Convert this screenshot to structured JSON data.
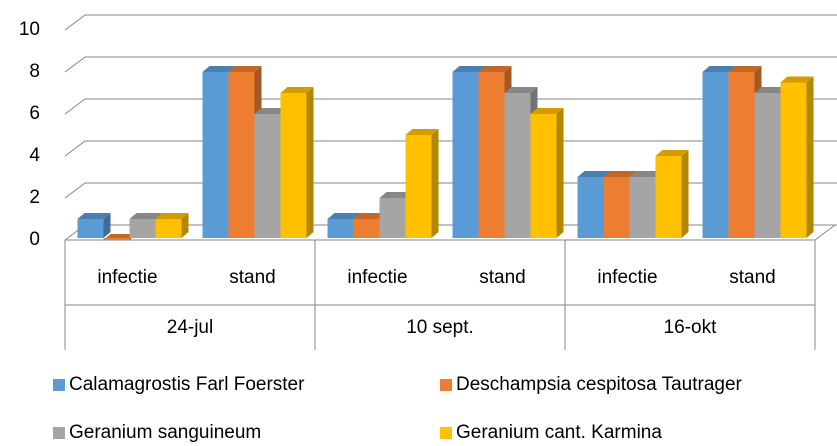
{
  "chart_data": {
    "type": "bar3d",
    "categories": [
      "infectie",
      "stand",
      "infectie",
      "stand",
      "infectie",
      "stand"
    ],
    "category_groups": [
      "24-jul",
      "10 sept.",
      "16-okt"
    ],
    "ylim": [
      0,
      10
    ],
    "yticks": [
      0,
      2,
      4,
      6,
      8,
      10
    ],
    "grid": true,
    "legend": "bottom",
    "series": [
      {
        "name": "Calamagrostis Farl Foerster",
        "color": "#5b9bd5",
        "values": [
          1,
          8,
          1,
          8,
          3,
          8
        ]
      },
      {
        "name": "Deschampsia cespitosa Tautrager",
        "color": "#ed7d31",
        "values": [
          0,
          8,
          1,
          8,
          3,
          8
        ]
      },
      {
        "name": "Geranium sanguineum",
        "color": "#a5a5a5",
        "values": [
          1,
          6,
          2,
          7,
          3,
          7
        ]
      },
      {
        "name": "Geranium cant. Karmina",
        "color": "#ffc000",
        "values": [
          1,
          7,
          5,
          6,
          4,
          7.5
        ]
      }
    ]
  }
}
